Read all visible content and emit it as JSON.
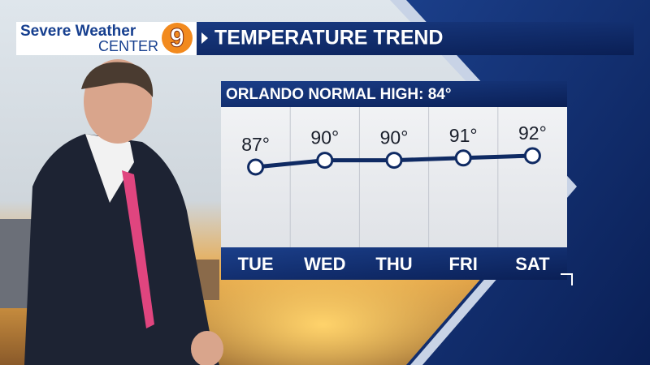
{
  "branding": {
    "line1": "Severe Weather",
    "line2": "CENTER",
    "channel": "9"
  },
  "chart_data": {
    "type": "line",
    "title": "TEMPERATURE TREND",
    "subtitle": "ORLANDO NORMAL HIGH: 84°",
    "categories": [
      "TUE",
      "WED",
      "THU",
      "FRI",
      "SAT"
    ],
    "values": [
      87,
      90,
      90,
      91,
      92
    ],
    "value_labels": [
      "87°",
      "90°",
      "90°",
      "91°",
      "92°"
    ],
    "color": "#0f2a63"
  }
}
